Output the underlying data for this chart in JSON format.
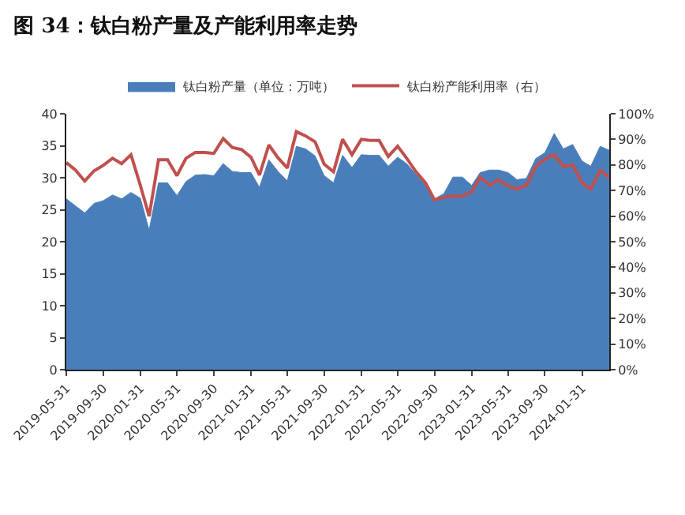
{
  "chart_data": {
    "type": "area",
    "title": "图 34：钛白粉产量及产能利用率走势",
    "x": [
      "2019-05-31",
      "2019-06-30",
      "2019-07-31",
      "2019-08-31",
      "2019-09-30",
      "2019-10-31",
      "2019-11-30",
      "2019-12-31",
      "2020-01-31",
      "2020-02-29",
      "2020-03-31",
      "2020-04-30",
      "2020-05-31",
      "2020-06-30",
      "2020-07-31",
      "2020-08-31",
      "2020-09-30",
      "2020-10-31",
      "2020-11-30",
      "2020-12-31",
      "2021-01-31",
      "2021-02-28",
      "2021-03-31",
      "2021-04-30",
      "2021-05-31",
      "2021-06-30",
      "2021-07-31",
      "2021-08-31",
      "2021-09-30",
      "2021-10-31",
      "2021-11-30",
      "2021-12-31",
      "2022-01-31",
      "2022-02-28",
      "2022-03-31",
      "2022-04-30",
      "2022-05-31",
      "2022-06-30",
      "2022-07-31",
      "2022-08-31",
      "2022-09-30",
      "2022-10-31",
      "2022-11-30",
      "2022-12-31",
      "2023-01-31",
      "2023-02-28",
      "2023-03-31",
      "2023-04-30",
      "2023-05-31",
      "2023-06-30",
      "2023-07-31",
      "2023-08-31",
      "2023-09-30",
      "2023-10-31",
      "2023-11-30",
      "2023-12-31",
      "2024-01-31",
      "2024-02-29",
      "2024-03-31",
      "2024-04-30"
    ],
    "series": [
      {
        "name": "钛白粉产量（单位：万吨）",
        "color": "#4a7ebb",
        "values": [
          26.7,
          25.6,
          24.5,
          26,
          26.4,
          27.3,
          26.7,
          27.7,
          26.8,
          21.8,
          29.2,
          29.2,
          27.2,
          29.4,
          30.4,
          30.5,
          30.3,
          32.2,
          31,
          30.8,
          30.8,
          28.5,
          32.8,
          31,
          29.5,
          34.9,
          34.5,
          33.4,
          30.3,
          29.2,
          33.5,
          31.6,
          33.6,
          33.5,
          33.5,
          31.8,
          33.2,
          32.2,
          30.5,
          28.8,
          26.7,
          27.5,
          30.1,
          30.1,
          28.8,
          30.8,
          31.2,
          31.2,
          30.8,
          29.7,
          29.9,
          33,
          33.9,
          36.9,
          34.5,
          35.2,
          32.6,
          31.8,
          34.9,
          34.3
        ]
      },
      {
        "name": "钛白粉产能利用率（右）",
        "type": "line",
        "axis": "y2",
        "color": "#c0504d",
        "values": [
          80.9,
          78,
          73.7,
          77.7,
          79.8,
          82.6,
          80.5,
          84,
          72,
          60,
          82,
          82,
          75.8,
          82.6,
          84.9,
          84.9,
          84.5,
          90.3,
          86.8,
          86,
          83,
          76,
          87.8,
          82.8,
          78.8,
          93,
          91.3,
          89,
          80.3,
          77.3,
          90,
          84,
          90,
          89.6,
          89.6,
          83.3,
          87.3,
          82.6,
          77.3,
          73,
          66.3,
          67.4,
          67.8,
          67.8,
          69.5,
          75.2,
          72,
          74.2,
          71.8,
          70.6,
          72,
          79.4,
          82.2,
          84,
          79.4,
          80,
          73,
          70.6,
          77.8,
          75.2
        ]
      }
    ],
    "xlim": [
      "2019-05-31",
      "2024-04-30"
    ],
    "xticks": [
      "2019-05-31",
      "2019-09-30",
      "2020-01-31",
      "2020-05-31",
      "2020-09-30",
      "2021-01-31",
      "2021-05-31",
      "2021-09-30",
      "2022-01-31",
      "2022-05-31",
      "2022-09-30",
      "2023-01-31",
      "2023-05-31",
      "2023-09-30",
      "2024-01-31"
    ],
    "ylim": [
      0,
      40
    ],
    "yticks": [
      0,
      5,
      10,
      15,
      20,
      25,
      30,
      35,
      40
    ],
    "y2lim": [
      0,
      100
    ],
    "y2ticks": [
      {
        "value": 0,
        "label": "0%"
      },
      {
        "value": 10,
        "label": "10%"
      },
      {
        "value": 20,
        "label": "20%"
      },
      {
        "value": 30,
        "label": "30%"
      },
      {
        "value": 40,
        "label": "40%"
      },
      {
        "value": 50,
        "label": "50%"
      },
      {
        "value": 60,
        "label": "60%"
      },
      {
        "value": 70,
        "label": "70%"
      },
      {
        "value": 80,
        "label": "80%"
      },
      {
        "value": 90,
        "label": "90%"
      },
      {
        "value": 100,
        "label": "100%"
      }
    ],
    "legend": "top"
  }
}
